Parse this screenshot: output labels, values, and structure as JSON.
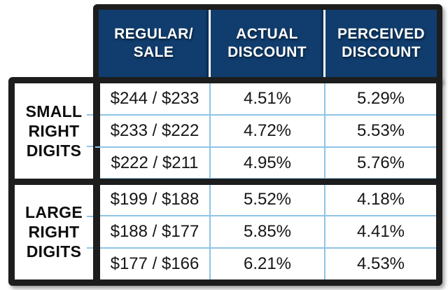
{
  "figure": {
    "title": "price right-digit discount perception table",
    "header": {
      "columns": [
        {
          "label": "REGULAR/\nSALE"
        },
        {
          "label": "ACTUAL\nDISCOUNT"
        },
        {
          "label": "PERCEIVED\nDISCOUNT"
        }
      ]
    },
    "groups": [
      {
        "label": "SMALL\nRIGHT\nDIGITS",
        "rows": [
          {
            "regular_sale": "$244 / $233",
            "actual": "4.51%",
            "perceived": "5.29%"
          },
          {
            "regular_sale": "$233 / $222",
            "actual": "4.72%",
            "perceived": "5.53%"
          },
          {
            "regular_sale": "$222 / $211",
            "actual": "4.95%",
            "perceived": "5.76%"
          }
        ]
      },
      {
        "label": "LARGE\nRIGHT\nDIGITS",
        "rows": [
          {
            "regular_sale": "$199 / $188",
            "actual": "5.52%",
            "perceived": "4.18%"
          },
          {
            "regular_sale": "$188 / $177",
            "actual": "5.85%",
            "perceived": "4.41%"
          },
          {
            "regular_sale": "$177 / $166",
            "actual": "6.21%",
            "perceived": "4.53%"
          }
        ]
      }
    ]
  },
  "colors": {
    "header_navy": "#103d6e",
    "border_black": "#1d1d1d",
    "divider_blue": "#8fc4e6",
    "header_text": "#ffffff",
    "body_text": "#161616",
    "background": "#ffffff"
  },
  "chart_data": {
    "type": "table",
    "columns": [
      "",
      "REGULAR/SALE",
      "ACTUAL DISCOUNT",
      "PERCEIVED DISCOUNT"
    ],
    "rows": [
      [
        "SMALL RIGHT DIGITS",
        "$244 / $233",
        "4.51%",
        "5.29%"
      ],
      [
        "SMALL RIGHT DIGITS",
        "$233 / $222",
        "4.72%",
        "5.53%"
      ],
      [
        "SMALL RIGHT DIGITS",
        "$222 / $211",
        "4.95%",
        "5.76%"
      ],
      [
        "LARGE RIGHT DIGITS",
        "$199 / $188",
        "5.52%",
        "4.18%"
      ],
      [
        "LARGE RIGHT DIGITS",
        "$188 / $177",
        "5.85%",
        "4.41%"
      ],
      [
        "LARGE RIGHT DIGITS",
        "$177 / $166",
        "6.21%",
        "4.53%"
      ]
    ],
    "categories": [
      "$244 / $233",
      "$233 / $222",
      "$222 / $211",
      "$199 / $188",
      "$188 / $177",
      "$177 / $166"
    ],
    "series": [
      {
        "name": "Actual Discount (%)",
        "values": [
          4.51,
          4.72,
          4.95,
          5.52,
          5.85,
          6.21
        ]
      },
      {
        "name": "Perceived Discount (%)",
        "values": [
          5.29,
          5.53,
          5.76,
          4.18,
          4.41,
          4.53
        ]
      }
    ]
  }
}
